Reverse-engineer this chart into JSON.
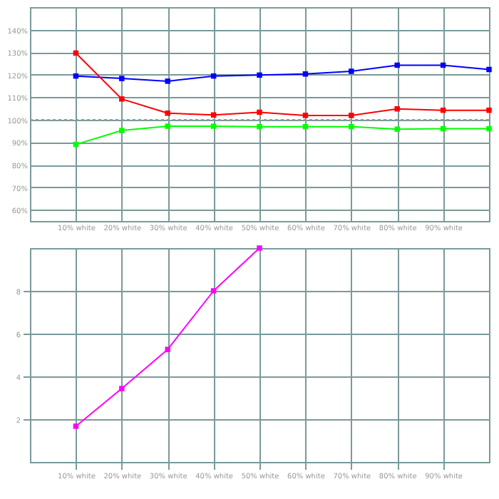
{
  "chart_data": [
    {
      "type": "line",
      "x": [
        10,
        20,
        30,
        40,
        50,
        60,
        70,
        80,
        90,
        100
      ],
      "xlim": [
        0,
        100
      ],
      "xticks": [
        {
          "value": 10,
          "label": "10% white"
        },
        {
          "value": 20,
          "label": "20% white"
        },
        {
          "value": 30,
          "label": "30% white"
        },
        {
          "value": 40,
          "label": "40% white"
        },
        {
          "value": 50,
          "label": "50% white"
        },
        {
          "value": 60,
          "label": "60% white"
        },
        {
          "value": 70,
          "label": "70% white"
        },
        {
          "value": 80,
          "label": "80% white"
        },
        {
          "value": 90,
          "label": "90% white"
        }
      ],
      "ylim": [
        55,
        150
      ],
      "yticks": [
        {
          "value": 60,
          "label": "60%"
        },
        {
          "value": 70,
          "label": "70%"
        },
        {
          "value": 80,
          "label": "80%"
        },
        {
          "value": 90,
          "label": "90%"
        },
        {
          "value": 100,
          "label": "100%"
        },
        {
          "value": 110,
          "label": "110%"
        },
        {
          "value": 120,
          "label": "120%"
        },
        {
          "value": 130,
          "label": "130%"
        },
        {
          "value": 140,
          "label": "140%"
        }
      ],
      "grid": true,
      "marker": "square",
      "ref_lines": [
        {
          "axis": "y",
          "value": 100,
          "color": "#999999",
          "line_style": "dotted"
        }
      ],
      "series": [
        {
          "color": "#0000ff",
          "values": [
            119.4,
            118.3,
            117.1,
            119.4,
            119.8,
            120.3,
            121.5,
            124.2,
            124.2,
            122.3
          ]
        },
        {
          "color": "#ff0000",
          "values": [
            129.6,
            109.2,
            102.9,
            102.1,
            103.3,
            101.9,
            101.9,
            104.8,
            104.2,
            104.2
          ]
        },
        {
          "color": "#00ff00",
          "values": [
            89.0,
            95.2,
            97.1,
            97.1,
            96.9,
            96.9,
            96.9,
            95.8,
            96.0,
            96.0
          ]
        }
      ]
    },
    {
      "type": "line",
      "xlim": [
        0,
        100
      ],
      "xticks": [
        {
          "value": 10,
          "label": "10% white"
        },
        {
          "value": 20,
          "label": "20% white"
        },
        {
          "value": 30,
          "label": "30% white"
        },
        {
          "value": 40,
          "label": "40% white"
        },
        {
          "value": 50,
          "label": "50% white"
        },
        {
          "value": 60,
          "label": "60% white"
        },
        {
          "value": 70,
          "label": "70% white"
        },
        {
          "value": 80,
          "label": "80% white"
        },
        {
          "value": 90,
          "label": "90% white"
        }
      ],
      "ylim": [
        0,
        10
      ],
      "yticks": [
        2,
        4,
        6,
        8
      ],
      "grid": true,
      "marker": "square",
      "series": [
        {
          "color": "#ff00ff",
          "x": [
            10,
            20,
            30,
            40,
            50
          ],
          "values": [
            1.67,
            3.43,
            5.26,
            8.0,
            10.0
          ]
        }
      ]
    }
  ]
}
